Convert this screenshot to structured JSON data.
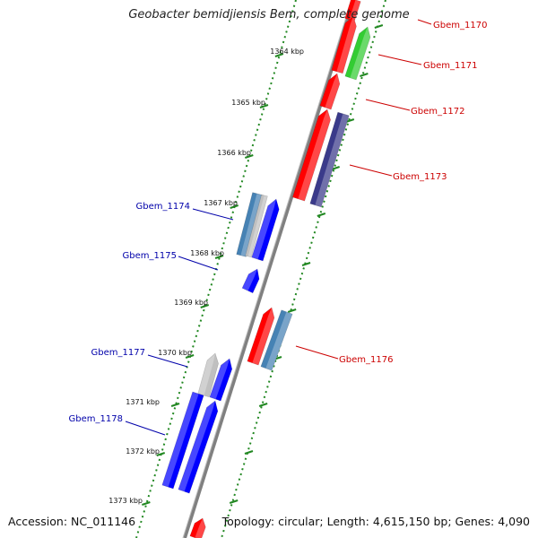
{
  "title": "Geobacter bemidjiensis Bem, complete genome",
  "footer": {
    "accession": "Accession: NC_011146",
    "topology": "Topology: circular; Length: 4,615,150 bp; Genes: 4,090"
  },
  "colors": {
    "backbone": "#808080",
    "forward_label": "#cc0000",
    "reverse_label": "#0000aa",
    "tick": "#228822",
    "gene_red": "#ff0000",
    "gene_green": "#33cc33",
    "gene_purple": "#3a3a8a",
    "gene_steel": "#4682b4",
    "gene_grey": "#c0c0c0",
    "gene_blue": "#0000ff"
  },
  "kbp_marks": [
    "1364 kbp",
    "1365 kbp",
    "1366 kbp",
    "1367 kbp",
    "1368 kbp",
    "1369 kbp",
    "1370 kbp",
    "1371 kbp",
    "1372 kbp",
    "1373 kbp"
  ],
  "gene_labels": [
    {
      "id": "Gbem_1170",
      "strand": "forward"
    },
    {
      "id": "Gbem_1171",
      "strand": "forward"
    },
    {
      "id": "Gbem_1172",
      "strand": "forward"
    },
    {
      "id": "Gbem_1173",
      "strand": "forward"
    },
    {
      "id": "Gbem_1174",
      "strand": "reverse"
    },
    {
      "id": "Gbem_1175",
      "strand": "reverse"
    },
    {
      "id": "Gbem_1176",
      "strand": "forward"
    },
    {
      "id": "Gbem_1177",
      "strand": "reverse"
    },
    {
      "id": "Gbem_1178",
      "strand": "reverse"
    }
  ]
}
